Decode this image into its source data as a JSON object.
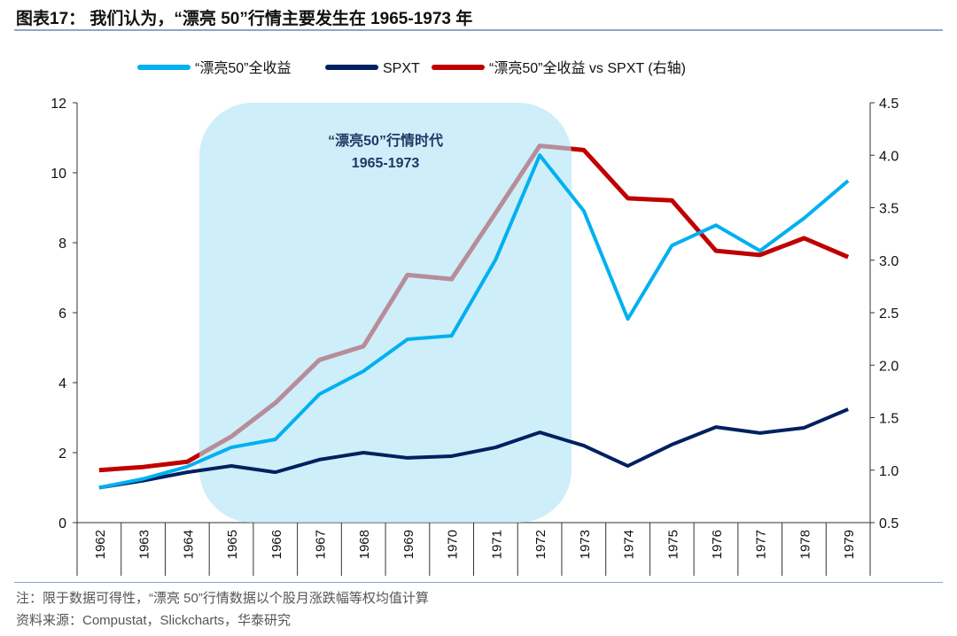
{
  "title": "图表17： 我们认为，“漂亮 50”行情主要发生在 1965-1973 年",
  "notes": {
    "note": "注：限于数据可得性，“漂亮 50”行情数据以个股月涨跌幅等权均值计算",
    "source": "资料来源：Compustat，Slickcharts，华泰研究"
  },
  "chart_data": {
    "type": "line",
    "categories": [
      "1962",
      "1963",
      "1964",
      "1965",
      "1966",
      "1967",
      "1968",
      "1969",
      "1970",
      "1971",
      "1972",
      "1973",
      "1974",
      "1975",
      "1976",
      "1977",
      "1978",
      "1979"
    ],
    "y_left": {
      "range": [
        0,
        12
      ],
      "ticks": [
        "0",
        "2",
        "4",
        "6",
        "8",
        "10",
        "12"
      ]
    },
    "y_right": {
      "range": [
        0.5,
        4.5
      ],
      "ticks": [
        "0.5",
        "1.0",
        "1.5",
        "2.0",
        "2.5",
        "3.0",
        "3.5",
        "4.0",
        "4.5"
      ]
    },
    "grid": false,
    "legend_placement": "top",
    "series": [
      {
        "name": "“漂亮50”全收益",
        "axis": "left",
        "color": "#00b0f0",
        "values": [
          1.0,
          1.25,
          1.6,
          2.15,
          2.38,
          3.67,
          4.33,
          5.24,
          5.34,
          7.52,
          10.5,
          8.91,
          5.82,
          7.92,
          8.5,
          7.77,
          8.7,
          9.77
        ]
      },
      {
        "name": "SPXT",
        "axis": "left",
        "color": "#002060",
        "values": [
          1.0,
          1.2,
          1.44,
          1.62,
          1.44,
          1.8,
          2.0,
          1.85,
          1.9,
          2.15,
          2.58,
          2.2,
          1.62,
          2.23,
          2.73,
          2.56,
          2.71,
          3.24
        ]
      },
      {
        "name": "“漂亮50”全收益 vs SPXT (右轴)",
        "axis": "right",
        "color": "#c00000",
        "values": [
          1.0,
          1.03,
          1.08,
          1.32,
          1.64,
          2.05,
          2.18,
          2.86,
          2.82,
          3.45,
          4.09,
          4.05,
          3.59,
          3.57,
          3.09,
          3.05,
          3.21,
          3.03
        ]
      }
    ],
    "annotation": {
      "line1": "“漂亮50”行情时代",
      "line2": "1965-1973",
      "span": [
        "1965",
        "1972"
      ],
      "color": "#b0e4f7"
    }
  }
}
